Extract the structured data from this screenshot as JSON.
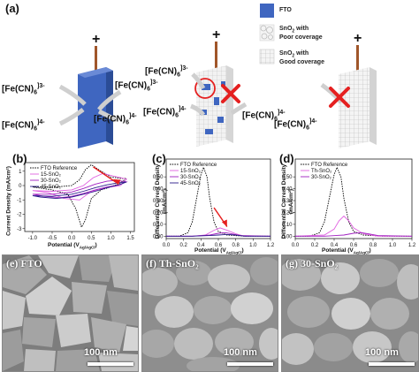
{
  "panel_a": {
    "tag": "(a)",
    "plus": "+",
    "ion_left": "[Fe(CN)",
    "ion_sub": "6",
    "charge_3": "]3-",
    "charge_4": "]4-",
    "legend": {
      "fto": "FTO",
      "poor_l1": "SnO",
      "poor_sub": "2",
      "poor_l1b": " with",
      "poor_l2": "Poor coverage",
      "good_l1": "SnO",
      "good_sub": "2",
      "good_l1b": " with",
      "good_l2": "Good coverage"
    },
    "colors": {
      "fto": "#3f66c0",
      "electrode": "#a0562a",
      "cross": "#e52020",
      "arrow": "#d9d9d9"
    }
  },
  "panel_b": {
    "tag": "(b)",
    "ylabel": "Current Density (mA/cm²)",
    "xlabel_pre": "Potential (V",
    "xlabel_sub": "Ag/AgCl",
    "xlabel_post": ")",
    "legend": [
      "FTO Reference",
      "15-SnO₂",
      "30-SnO₂",
      "45-SnO₂"
    ],
    "xticks": [
      "-1.0",
      "-0.5",
      "0.0",
      "0.5",
      "1.0",
      "1.5"
    ],
    "yticks": [
      "1",
      "0",
      "-1",
      "-2",
      "-3"
    ]
  },
  "panel_c": {
    "tag": "(c)",
    "ylabel": "Differential Current Density",
    "ylabel2": "(mA/cm²)",
    "xlabel_pre": "Potential (V",
    "xlabel_sub": "Ag/AgCl",
    "xlabel_post": ")",
    "legend": [
      "FTO Reference",
      "15-SnO₂",
      "30-SnO₂",
      "45-SnO₂"
    ],
    "xticks": [
      "0.0",
      "0.2",
      "0.4",
      "0.6",
      "0.8",
      "1.0",
      "1.2"
    ],
    "yticks": [
      "0.00",
      "0.10",
      "0.20",
      "0.30",
      "0.40",
      "0.50"
    ]
  },
  "panel_d": {
    "tag": "(d)",
    "ylabel": "Differential Current Density",
    "ylabel2": "(mA/cm²)",
    "xlabel_pre": "Potential (V",
    "xlabel_sub": "Ag/AgCl",
    "xlabel_post": ")",
    "legend": [
      "FTO Reference",
      "Th-SnO₂",
      "30-SnO₂"
    ],
    "xticks": [
      "0.0",
      "0.2",
      "0.4",
      "0.6",
      "0.8",
      "1.0",
      "1.2"
    ],
    "yticks": [
      "0.00",
      "0.10",
      "0.20",
      "0.30",
      "0.40",
      "0.50"
    ]
  },
  "sem": [
    {
      "tag": "(e) FTO",
      "scale": "100 nm"
    },
    {
      "tag": "(f) Th-SnO₂",
      "scale": "100 nm"
    },
    {
      "tag": "(g) 30-SnO₂",
      "scale": "100 nm"
    }
  ],
  "chart_data": [
    {
      "type": "line",
      "panel": "b",
      "xlabel": "Potential (V Ag/AgCl)",
      "ylabel": "Current Density (mA/cm²)",
      "xlim": [
        -1.2,
        1.6
      ],
      "ylim": [
        -3.2,
        1.6
      ],
      "series": [
        {
          "name": "FTO Reference",
          "color": "#000000",
          "dash": true,
          "x": [
            -1.0,
            -0.5,
            0.0,
            0.2,
            0.35,
            0.5,
            0.75,
            1.0,
            1.25,
            1.4,
            1.25,
            1.0,
            0.75,
            0.5,
            0.35,
            0.25,
            0.1,
            -0.1,
            -0.5,
            -1.0
          ],
          "y": [
            -0.1,
            -0.12,
            0.0,
            0.4,
            1.1,
            1.45,
            1.0,
            0.6,
            0.5,
            0.5,
            0.2,
            -0.1,
            -0.3,
            -0.9,
            -2.4,
            -2.9,
            -1.6,
            -0.6,
            -0.3,
            -0.1
          ]
        },
        {
          "name": "15-SnO₂",
          "color": "#e060e0",
          "dash": false,
          "x": [
            -1.0,
            -0.5,
            0.0,
            0.3,
            0.55,
            0.8,
            1.0,
            1.25,
            1.4,
            1.25,
            1.0,
            0.7,
            0.45,
            0.2,
            -0.2,
            -0.6,
            -1.0
          ],
          "y": [
            -0.35,
            -0.4,
            -0.3,
            0.0,
            0.55,
            0.85,
            0.7,
            0.55,
            0.45,
            0.0,
            -0.1,
            -0.25,
            -0.5,
            -1.0,
            -0.9,
            -0.5,
            -0.35
          ]
        },
        {
          "name": "30-SnO₂",
          "color": "#a020c0",
          "dash": false,
          "x": [
            -1.0,
            -0.5,
            0.0,
            0.3,
            0.6,
            0.9,
            1.1,
            1.3,
            1.4,
            1.2,
            0.9,
            0.6,
            0.3,
            0.0,
            -0.3,
            -0.7,
            -1.0
          ],
          "y": [
            -0.6,
            -0.6,
            -0.45,
            -0.2,
            0.1,
            0.3,
            0.35,
            0.3,
            0.25,
            0.05,
            -0.1,
            -0.3,
            -0.55,
            -0.75,
            -0.85,
            -0.75,
            -0.6
          ]
        },
        {
          "name": "45-SnO₂",
          "color": "#2a1a8a",
          "dash": false,
          "x": [
            -1.0,
            -0.5,
            0.0,
            0.3,
            0.6,
            0.9,
            1.2,
            1.4,
            1.2,
            0.9,
            0.6,
            0.3,
            0.0,
            -0.4,
            -0.8,
            -1.0
          ],
          "y": [
            -0.7,
            -0.75,
            -0.6,
            -0.4,
            -0.15,
            0.05,
            0.2,
            0.25,
            0.05,
            -0.15,
            -0.4,
            -0.6,
            -0.8,
            -0.9,
            -0.8,
            -0.7
          ]
        }
      ]
    },
    {
      "type": "line",
      "panel": "c",
      "xlabel": "Potential (V Ag/AgCl)",
      "ylabel": "Differential Current Density (mA/cm²)",
      "xlim": [
        0.0,
        1.2
      ],
      "ylim": [
        -0.02,
        0.65
      ],
      "series": [
        {
          "name": "FTO Reference",
          "color": "#000000",
          "dash": true,
          "x": [
            0.0,
            0.15,
            0.25,
            0.3,
            0.35,
            0.4,
            0.43,
            0.47,
            0.5,
            0.55,
            0.6,
            0.7,
            0.9,
            1.2
          ],
          "y": [
            0.0,
            0.0,
            0.03,
            0.12,
            0.32,
            0.52,
            0.58,
            0.5,
            0.32,
            0.12,
            0.04,
            0.01,
            0.0,
            0.0
          ]
        },
        {
          "name": "15-SnO₂",
          "color": "#e060e0",
          "dash": false,
          "x": [
            0.0,
            0.3,
            0.45,
            0.55,
            0.62,
            0.7,
            0.8,
            0.9,
            1.2
          ],
          "y": [
            0.0,
            0.0,
            0.01,
            0.05,
            0.07,
            0.05,
            0.02,
            0.0,
            0.0
          ]
        },
        {
          "name": "30-SnO₂",
          "color": "#a020c0",
          "dash": false,
          "x": [
            0.0,
            0.3,
            0.5,
            0.6,
            0.68,
            0.75,
            0.85,
            1.2
          ],
          "y": [
            0.0,
            0.0,
            0.01,
            0.025,
            0.03,
            0.02,
            0.005,
            0.0
          ]
        },
        {
          "name": "45-SnO₂",
          "color": "#2a1a8a",
          "dash": false,
          "x": [
            0.0,
            0.3,
            0.5,
            0.6,
            0.7,
            0.8,
            0.9,
            1.2
          ],
          "y": [
            0.0,
            0.0,
            0.005,
            0.01,
            0.015,
            0.01,
            0.0,
            0.0
          ]
        }
      ]
    },
    {
      "type": "line",
      "panel": "d",
      "xlabel": "Potential (V Ag/AgCl)",
      "ylabel": "Differential Current Density (mA/cm²)",
      "xlim": [
        0.0,
        1.2
      ],
      "ylim": [
        -0.02,
        0.65
      ],
      "series": [
        {
          "name": "FTO Reference",
          "color": "#000000",
          "dash": true,
          "x": [
            0.0,
            0.15,
            0.25,
            0.3,
            0.35,
            0.4,
            0.43,
            0.47,
            0.5,
            0.55,
            0.6,
            0.7,
            0.9,
            1.2
          ],
          "y": [
            0.0,
            0.0,
            0.03,
            0.12,
            0.32,
            0.52,
            0.58,
            0.5,
            0.32,
            0.12,
            0.04,
            0.01,
            0.0,
            0.0
          ]
        },
        {
          "name": "Th-SnO₂",
          "color": "#e060e0",
          "dash": false,
          "x": [
            0.0,
            0.3,
            0.4,
            0.45,
            0.5,
            0.55,
            0.6,
            0.7,
            0.85,
            1.2
          ],
          "y": [
            0.0,
            0.01,
            0.06,
            0.13,
            0.17,
            0.13,
            0.07,
            0.02,
            0.0,
            0.0
          ]
        },
        {
          "name": "30-SnO₂",
          "color": "#a020c0",
          "dash": false,
          "x": [
            0.0,
            0.3,
            0.5,
            0.6,
            0.68,
            0.75,
            0.85,
            1.2
          ],
          "y": [
            0.0,
            0.0,
            0.01,
            0.025,
            0.03,
            0.02,
            0.005,
            0.0
          ]
        }
      ]
    }
  ]
}
